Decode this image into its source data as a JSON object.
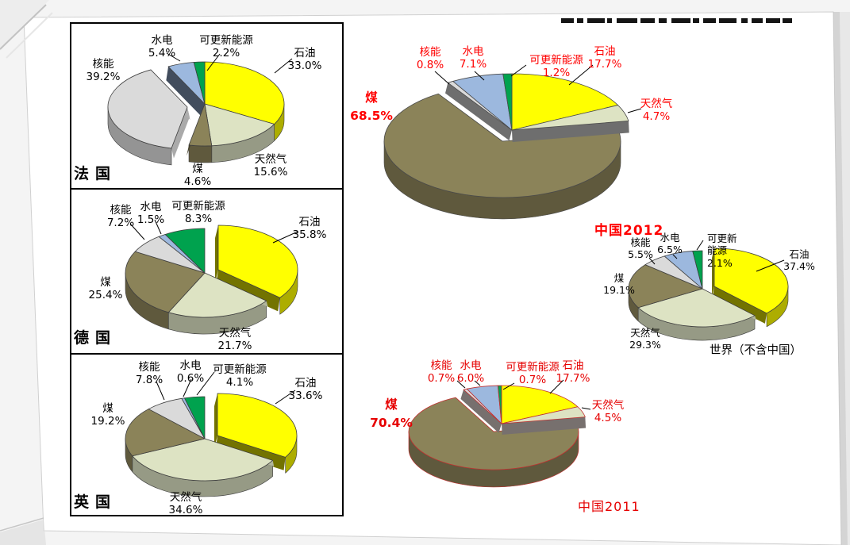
{
  "colors": {
    "石油": "#FFFF00",
    "天然气": "#DDE3C3",
    "煤": "#8B8359",
    "核能": "#DADADA",
    "水电": "#9CB8DE",
    "可更新能源": "#00A24E"
  },
  "chart_data": [
    {
      "id": "france",
      "type": "pie",
      "title": "法国",
      "unit": "%",
      "label_color": "#000000",
      "outline_color": "#3F3F3F",
      "exploded": "核能",
      "slices": [
        {
          "name": "石油",
          "value": 33.0,
          "display": "33.0%"
        },
        {
          "name": "天然气",
          "value": 15.6,
          "display": "15.6%"
        },
        {
          "name": "煤",
          "value": 4.6,
          "display": "4.6%"
        },
        {
          "name": "核能",
          "value": 39.2,
          "display": "39.2%"
        },
        {
          "name": "水电",
          "value": 5.4,
          "display": "5.4%"
        },
        {
          "name": "可更新能源",
          "value": 2.2,
          "display": "2.2%"
        }
      ]
    },
    {
      "id": "germany",
      "type": "pie",
      "title": "德国",
      "unit": "%",
      "label_color": "#000000",
      "outline_color": "#3F3F3F",
      "exploded": "石油",
      "slices": [
        {
          "name": "石油",
          "value": 35.8,
          "display": "35.8%"
        },
        {
          "name": "天然气",
          "value": 21.7,
          "display": "21.7%"
        },
        {
          "name": "煤",
          "value": 25.4,
          "display": "25.4%"
        },
        {
          "name": "核能",
          "value": 7.2,
          "display": "7.2%"
        },
        {
          "name": "水电",
          "value": 1.5,
          "display": "1.5%"
        },
        {
          "name": "可更新能源",
          "value": 8.3,
          "display": "8.3%"
        }
      ]
    },
    {
      "id": "uk",
      "type": "pie",
      "title": "英国",
      "unit": "%",
      "label_color": "#000000",
      "outline_color": "#3F3F3F",
      "exploded": "石油",
      "slices": [
        {
          "name": "石油",
          "value": 33.6,
          "display": "33.6%"
        },
        {
          "name": "天然气",
          "value": 34.6,
          "display": "34.6%"
        },
        {
          "name": "煤",
          "value": 19.2,
          "display": "19.2%"
        },
        {
          "name": "核能",
          "value": 7.8,
          "display": "7.8%"
        },
        {
          "name": "水电",
          "value": 0.6,
          "display": "0.6%"
        },
        {
          "name": "可更新能源",
          "value": 4.1,
          "display": "4.1%"
        }
      ]
    },
    {
      "id": "china2012",
      "type": "pie",
      "title": "中国2012",
      "unit": "%",
      "label_color": "#FF0000",
      "outline_color": "#4A4A4A",
      "exploded": "煤",
      "slices": [
        {
          "name": "石油",
          "value": 17.7,
          "display": "17.7%"
        },
        {
          "name": "天然气",
          "value": 4.7,
          "display": "4.7%"
        },
        {
          "name": "煤",
          "value": 68.5,
          "display": "68.5%"
        },
        {
          "name": "核能",
          "value": 0.8,
          "display": "0.8%"
        },
        {
          "name": "水电",
          "value": 7.1,
          "display": "7.1%"
        },
        {
          "name": "可更新能源",
          "value": 1.2,
          "display": "1.2%"
        }
      ]
    },
    {
      "id": "world",
      "type": "pie",
      "title": "世界（不含中国）",
      "unit": "%",
      "label_color": "#000000",
      "outline_color": "#3F3F3F",
      "exploded": "石油",
      "slices": [
        {
          "name": "石油",
          "value": 37.4,
          "display": "37.4%"
        },
        {
          "name": "天然气",
          "value": 29.3,
          "display": "29.3%"
        },
        {
          "name": "煤",
          "value": 19.1,
          "display": "19.1%"
        },
        {
          "name": "核能",
          "value": 5.5,
          "display": "5.5%"
        },
        {
          "name": "水电",
          "value": 6.5,
          "display": "6.5%"
        },
        {
          "name": "可更新能源",
          "value": 2.1,
          "display": "2.1%"
        }
      ]
    },
    {
      "id": "china2011",
      "type": "pie",
      "title": "中国2011",
      "unit": "%",
      "label_color": "#E60000",
      "outline_color": "#C03030",
      "exploded": "煤",
      "slices": [
        {
          "name": "石油",
          "value": 17.7,
          "display": "17.7%"
        },
        {
          "name": "天然气",
          "value": 4.5,
          "display": "4.5%"
        },
        {
          "name": "煤",
          "value": 70.4,
          "display": "70.4%"
        },
        {
          "name": "核能",
          "value": 0.7,
          "display": "0.7%"
        },
        {
          "name": "水电",
          "value": 6.0,
          "display": "6.0%"
        },
        {
          "name": "可更新能源",
          "value": 0.7,
          "display": "0.7%"
        }
      ]
    }
  ]
}
